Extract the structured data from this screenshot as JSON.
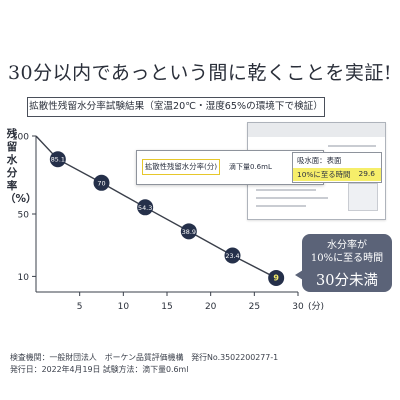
{
  "headline": "30分以内であっという間に乾くことを実証!",
  "subtitle": "拡散性残留水分率試験結果（室温20℃・湿度65%の環境下で検証）",
  "colors": {
    "marker": "#25304a",
    "line": "#3a3f4a",
    "badge": "#5b6378",
    "highlight": "#f6ee6a",
    "label_border": "#e6c72b"
  },
  "callout": {
    "label": "拡散性残留水分率(分)",
    "dose": "滴下量0.6mL",
    "surface_label": "吸水面：表面",
    "time_label": "10%に至る時間",
    "time_value": "29.6"
  },
  "badge": {
    "line1": "水分率が",
    "line2": "10%に至る時間",
    "line3": "30分未満"
  },
  "footer": {
    "line1": "検査機関：一般財団法人　ボーケン品質評価機構　発行No.3502200277-1",
    "line2": "発行日：2022年4月19日 試験方法：滴下量0.6ml"
  },
  "chart_data": {
    "type": "line",
    "ylabel": "残留水分率（%）",
    "xlabel_unit": "(分)",
    "x": [
      2.5,
      7.5,
      12.5,
      17.5,
      22.5,
      27.5
    ],
    "values": [
      85.1,
      70,
      54.3,
      38.9,
      23.4,
      9
    ],
    "value_labels": [
      "85.1",
      "70",
      "54.3",
      "38.9",
      "23.4",
      "9"
    ],
    "start": [
      0,
      100
    ],
    "xlim": [
      0,
      30
    ],
    "ylim": [
      0,
      100
    ],
    "xticks": [
      5,
      10,
      15,
      20,
      25,
      30
    ],
    "yticks": [
      100,
      50,
      10
    ]
  }
}
